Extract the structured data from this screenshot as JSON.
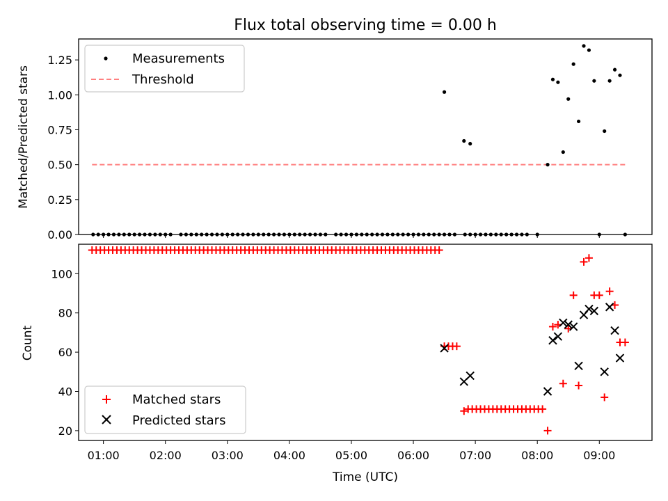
{
  "figure": {
    "title": "Flux total observing time = 0.00 h",
    "xlabel": "Time (UTC)",
    "xticks": [
      "01:00",
      "02:00",
      "03:00",
      "04:00",
      "05:00",
      "06:00",
      "07:00",
      "08:00",
      "09:00"
    ]
  },
  "chart_data": [
    {
      "type": "scatter",
      "ylabel": "Matched/Predicted stars",
      "xlim": [
        "00:36",
        "09:51"
      ],
      "ylim": [
        0,
        1.4
      ],
      "yticks": [
        "0.00",
        "0.25",
        "0.50",
        "0.75",
        "1.00",
        "1.25"
      ],
      "legend": {
        "position": "upper-left",
        "entries": [
          "Measurements",
          "Threshold"
        ]
      },
      "series": [
        {
          "name": "Measurements",
          "marker": "dot",
          "color": "#000000",
          "points": [
            [
              "00:50",
              0
            ],
            [
              "00:55",
              0
            ],
            [
              "01:00",
              0
            ],
            [
              "01:05",
              0
            ],
            [
              "01:10",
              0
            ],
            [
              "01:15",
              0
            ],
            [
              "01:20",
              0
            ],
            [
              "01:25",
              0
            ],
            [
              "01:30",
              0
            ],
            [
              "01:35",
              0
            ],
            [
              "01:40",
              0
            ],
            [
              "01:45",
              0
            ],
            [
              "01:50",
              0
            ],
            [
              "01:55",
              0
            ],
            [
              "02:00",
              0
            ],
            [
              "02:05",
              0
            ],
            [
              "02:15",
              0
            ],
            [
              "02:20",
              0
            ],
            [
              "02:25",
              0
            ],
            [
              "02:30",
              0
            ],
            [
              "02:35",
              0
            ],
            [
              "02:40",
              0
            ],
            [
              "02:45",
              0
            ],
            [
              "02:50",
              0
            ],
            [
              "02:55",
              0
            ],
            [
              "03:00",
              0
            ],
            [
              "03:05",
              0
            ],
            [
              "03:10",
              0
            ],
            [
              "03:15",
              0
            ],
            [
              "03:20",
              0
            ],
            [
              "03:25",
              0
            ],
            [
              "03:30",
              0
            ],
            [
              "03:35",
              0
            ],
            [
              "03:40",
              0
            ],
            [
              "03:45",
              0
            ],
            [
              "03:50",
              0
            ],
            [
              "03:55",
              0
            ],
            [
              "04:00",
              0
            ],
            [
              "04:05",
              0
            ],
            [
              "04:10",
              0
            ],
            [
              "04:15",
              0
            ],
            [
              "04:20",
              0
            ],
            [
              "04:25",
              0
            ],
            [
              "04:30",
              0
            ],
            [
              "04:35",
              0
            ],
            [
              "04:45",
              0
            ],
            [
              "04:50",
              0
            ],
            [
              "04:55",
              0
            ],
            [
              "05:00",
              0
            ],
            [
              "05:05",
              0
            ],
            [
              "05:10",
              0
            ],
            [
              "05:15",
              0
            ],
            [
              "05:20",
              0
            ],
            [
              "05:25",
              0
            ],
            [
              "05:30",
              0
            ],
            [
              "05:35",
              0
            ],
            [
              "05:40",
              0
            ],
            [
              "05:45",
              0
            ],
            [
              "05:50",
              0
            ],
            [
              "05:55",
              0
            ],
            [
              "06:00",
              0
            ],
            [
              "06:05",
              0
            ],
            [
              "06:10",
              0
            ],
            [
              "06:15",
              0
            ],
            [
              "06:20",
              0
            ],
            [
              "06:25",
              0
            ],
            [
              "06:30",
              0
            ],
            [
              "06:35",
              0
            ],
            [
              "06:40",
              0
            ],
            [
              "06:50",
              0
            ],
            [
              "06:55",
              0
            ],
            [
              "07:00",
              0
            ],
            [
              "07:05",
              0
            ],
            [
              "07:10",
              0
            ],
            [
              "07:15",
              0
            ],
            [
              "07:20",
              0
            ],
            [
              "07:25",
              0
            ],
            [
              "07:30",
              0
            ],
            [
              "07:35",
              0
            ],
            [
              "07:40",
              0
            ],
            [
              "07:45",
              0
            ],
            [
              "07:50",
              0
            ],
            [
              "08:00",
              0
            ],
            [
              "09:00",
              0
            ],
            [
              "09:25",
              0
            ],
            [
              "06:30",
              1.02
            ],
            [
              "06:49",
              0.67
            ],
            [
              "06:55",
              0.65
            ],
            [
              "08:10",
              0.5
            ],
            [
              "08:15",
              1.11
            ],
            [
              "08:20",
              1.09
            ],
            [
              "08:25",
              0.59
            ],
            [
              "08:30",
              0.97
            ],
            [
              "08:35",
              1.22
            ],
            [
              "08:40",
              0.81
            ],
            [
              "08:45",
              1.35
            ],
            [
              "08:50",
              1.32
            ],
            [
              "08:55",
              1.1
            ],
            [
              "09:05",
              0.74
            ],
            [
              "09:10",
              1.1
            ],
            [
              "09:15",
              1.18
            ],
            [
              "09:20",
              1.14
            ]
          ]
        },
        {
          "name": "Threshold",
          "type": "line",
          "style": "dashed",
          "color": "#ff8080",
          "x": [
            "00:49",
            "09:26"
          ],
          "y": [
            0.5,
            0.5
          ]
        }
      ]
    },
    {
      "type": "scatter",
      "ylabel": "Count",
      "xlim": [
        "00:36",
        "09:51"
      ],
      "ylim": [
        15,
        115
      ],
      "yticks": [
        "20",
        "40",
        "60",
        "80",
        "100"
      ],
      "legend": {
        "position": "lower-left",
        "entries": [
          "Matched stars",
          "Predicted stars"
        ]
      },
      "series": [
        {
          "name": "Matched stars",
          "marker": "plus",
          "color": "#ff0000",
          "points": [
            [
              "00:49",
              112
            ],
            [
              "00:53",
              112
            ],
            [
              "00:57",
              112
            ],
            [
              "01:01",
              112
            ],
            [
              "01:05",
              112
            ],
            [
              "01:09",
              112
            ],
            [
              "01:13",
              112
            ],
            [
              "01:17",
              112
            ],
            [
              "01:21",
              112
            ],
            [
              "01:25",
              112
            ],
            [
              "01:29",
              112
            ],
            [
              "01:33",
              112
            ],
            [
              "01:37",
              112
            ],
            [
              "01:41",
              112
            ],
            [
              "01:45",
              112
            ],
            [
              "01:49",
              112
            ],
            [
              "01:53",
              112
            ],
            [
              "01:57",
              112
            ],
            [
              "02:01",
              112
            ],
            [
              "02:05",
              112
            ],
            [
              "02:09",
              112
            ],
            [
              "02:13",
              112
            ],
            [
              "02:17",
              112
            ],
            [
              "02:21",
              112
            ],
            [
              "02:25",
              112
            ],
            [
              "02:29",
              112
            ],
            [
              "02:33",
              112
            ],
            [
              "02:37",
              112
            ],
            [
              "02:41",
              112
            ],
            [
              "02:45",
              112
            ],
            [
              "02:49",
              112
            ],
            [
              "02:53",
              112
            ],
            [
              "02:57",
              112
            ],
            [
              "03:01",
              112
            ],
            [
              "03:05",
              112
            ],
            [
              "03:09",
              112
            ],
            [
              "03:13",
              112
            ],
            [
              "03:17",
              112
            ],
            [
              "03:21",
              112
            ],
            [
              "03:25",
              112
            ],
            [
              "03:29",
              112
            ],
            [
              "03:33",
              112
            ],
            [
              "03:37",
              112
            ],
            [
              "03:41",
              112
            ],
            [
              "03:45",
              112
            ],
            [
              "03:49",
              112
            ],
            [
              "03:53",
              112
            ],
            [
              "03:57",
              112
            ],
            [
              "04:01",
              112
            ],
            [
              "04:05",
              112
            ],
            [
              "04:09",
              112
            ],
            [
              "04:13",
              112
            ],
            [
              "04:17",
              112
            ],
            [
              "04:21",
              112
            ],
            [
              "04:25",
              112
            ],
            [
              "04:29",
              112
            ],
            [
              "04:33",
              112
            ],
            [
              "04:37",
              112
            ],
            [
              "04:41",
              112
            ],
            [
              "04:45",
              112
            ],
            [
              "04:49",
              112
            ],
            [
              "04:53",
              112
            ],
            [
              "04:57",
              112
            ],
            [
              "05:01",
              112
            ],
            [
              "05:05",
              112
            ],
            [
              "05:09",
              112
            ],
            [
              "05:13",
              112
            ],
            [
              "05:17",
              112
            ],
            [
              "05:21",
              112
            ],
            [
              "05:25",
              112
            ],
            [
              "05:29",
              112
            ],
            [
              "05:33",
              112
            ],
            [
              "05:37",
              112
            ],
            [
              "05:41",
              112
            ],
            [
              "05:45",
              112
            ],
            [
              "05:49",
              112
            ],
            [
              "05:53",
              112
            ],
            [
              "05:57",
              112
            ],
            [
              "06:01",
              112
            ],
            [
              "06:05",
              112
            ],
            [
              "06:09",
              112
            ],
            [
              "06:13",
              112
            ],
            [
              "06:17",
              112
            ],
            [
              "06:21",
              112
            ],
            [
              "06:25",
              112
            ],
            [
              "06:30",
              63
            ],
            [
              "06:34",
              63
            ],
            [
              "06:38",
              63
            ],
            [
              "06:42",
              63
            ],
            [
              "06:49",
              30
            ],
            [
              "06:53",
              31
            ],
            [
              "06:57",
              31
            ],
            [
              "07:01",
              31
            ],
            [
              "07:05",
              31
            ],
            [
              "07:09",
              31
            ],
            [
              "07:13",
              31
            ],
            [
              "07:17",
              31
            ],
            [
              "07:21",
              31
            ],
            [
              "07:25",
              31
            ],
            [
              "07:29",
              31
            ],
            [
              "07:33",
              31
            ],
            [
              "07:37",
              31
            ],
            [
              "07:41",
              31
            ],
            [
              "07:45",
              31
            ],
            [
              "07:49",
              31
            ],
            [
              "07:53",
              31
            ],
            [
              "07:57",
              31
            ],
            [
              "08:01",
              31
            ],
            [
              "08:05",
              31
            ],
            [
              "08:10",
              20
            ],
            [
              "08:15",
              73
            ],
            [
              "08:20",
              74
            ],
            [
              "08:25",
              44
            ],
            [
              "08:30",
              72
            ],
            [
              "08:35",
              89
            ],
            [
              "08:40",
              43
            ],
            [
              "08:45",
              106
            ],
            [
              "08:50",
              108
            ],
            [
              "08:55",
              89
            ],
            [
              "09:00",
              89
            ],
            [
              "09:05",
              37
            ],
            [
              "09:10",
              91
            ],
            [
              "09:15",
              84
            ],
            [
              "09:20",
              65
            ],
            [
              "09:25",
              65
            ]
          ]
        },
        {
          "name": "Predicted stars",
          "marker": "x",
          "color": "#000000",
          "points": [
            [
              "06:30",
              62
            ],
            [
              "06:49",
              45
            ],
            [
              "06:55",
              48
            ],
            [
              "08:10",
              40
            ],
            [
              "08:15",
              66
            ],
            [
              "08:20",
              68
            ],
            [
              "08:25",
              75
            ],
            [
              "08:30",
              74
            ],
            [
              "08:35",
              73
            ],
            [
              "08:40",
              53
            ],
            [
              "08:45",
              79
            ],
            [
              "08:50",
              82
            ],
            [
              "08:55",
              81
            ],
            [
              "09:05",
              50
            ],
            [
              "09:10",
              83
            ],
            [
              "09:15",
              71
            ],
            [
              "09:20",
              57
            ]
          ]
        }
      ]
    }
  ]
}
